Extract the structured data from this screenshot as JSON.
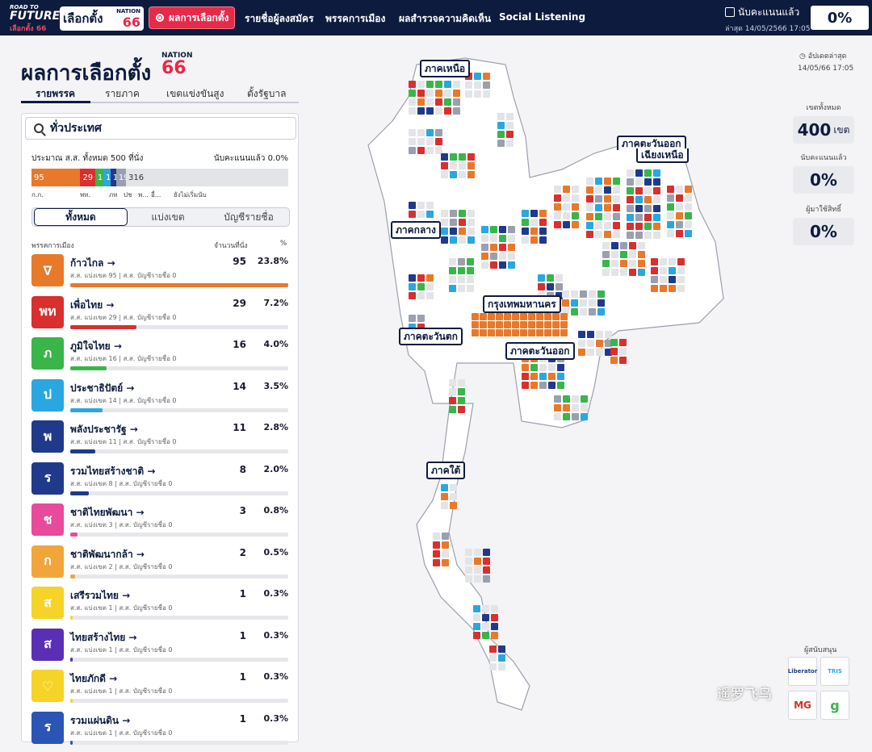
{
  "nav": {
    "logo_top": "ROAD TO",
    "logo_future": "FUTURE",
    "logo_sub": "เลือกตั้ง 66",
    "logo_title": "เลือกตั้ง",
    "logo_nation": "NATION",
    "logo_num": "66",
    "active_item": "ผลการเลือกตั้ง",
    "items": [
      "รายชื่อผู้ลงสมัคร",
      "พรรคการเมือง",
      "ผลสำรวจความคิดเห็น",
      "Social Listening"
    ],
    "count_label": "นับคะแนนแล้ว",
    "count_sub": "ล่าสุด 14/05/2566 17:05",
    "count_pct": "0%"
  },
  "title": {
    "text": "ผลการเลือกตั้ง",
    "nation": "NATION",
    "num": "66"
  },
  "tabs": [
    "รายพรรค",
    "รายภาค",
    "เขตแข่งขันสูง",
    "ตั้งรัฐบาล"
  ],
  "search": {
    "value": "ทั่วประเทศ"
  },
  "summary": {
    "seats_text": "ประมาณ ส.ส. ทั้งหมด 500 ที่นั่ง",
    "counted_text": "นับคะแนนแล้ว 0.0%",
    "bar": [
      {
        "label": "95",
        "value": 95,
        "color": "#e8792b"
      },
      {
        "label": "29",
        "value": 29,
        "color": "#d92f2f"
      },
      {
        "label": "16",
        "value": 16,
        "color": "#39b54a"
      },
      {
        "label": "14",
        "value": 14,
        "color": "#2aa7e0"
      },
      {
        "label": "11",
        "value": 11,
        "color": "#1f3a8a"
      },
      {
        "label": "19",
        "value": 19,
        "color": "#9aa0ad"
      },
      {
        "label": "316",
        "value": 316,
        "color": "#e3e4e8"
      }
    ],
    "legend": [
      "ก.ก.",
      "พท.",
      "ภท",
      "ปช",
      "พ...",
      "อื่...",
      "ยังไม่เริ่มนับ"
    ]
  },
  "filter": {
    "items": [
      "ทั้งหมด",
      "แบ่งเขต",
      "บัญชีรายชื่อ"
    ],
    "active": 0
  },
  "table": {
    "col_party": "พรรคการเมือง",
    "col_seats": "จำนวนที่นั่ง",
    "col_pct": "%"
  },
  "parties": [
    {
      "name": "ก้าวไกล",
      "sub": "ส.ส. แบ่งเขต 95 | ส.ส. บัญชีรายชื่อ 0",
      "seats": "95",
      "pct": "23.8%",
      "fill": 1.0,
      "color": "#e8792b",
      "logo": "∇"
    },
    {
      "name": "เพื่อไทย",
      "sub": "ส.ส. แบ่งเขต 29 | ส.ส. บัญชีรายชื่อ 0",
      "seats": "29",
      "pct": "7.2%",
      "fill": 0.305,
      "color": "#d92f2f",
      "logo": "พท"
    },
    {
      "name": "ภูมิใจไทย",
      "sub": "ส.ส. แบ่งเขต 16 | ส.ส. บัญชีรายชื่อ 0",
      "seats": "16",
      "pct": "4.0%",
      "fill": 0.168,
      "color": "#39b54a",
      "logo": "ภ"
    },
    {
      "name": "ประชาธิปัตย์",
      "sub": "ส.ส. แบ่งเขต 14 | ส.ส. บัญชีรายชื่อ 0",
      "seats": "14",
      "pct": "3.5%",
      "fill": 0.147,
      "color": "#2aa7e0",
      "logo": "ป"
    },
    {
      "name": "พลังประชารัฐ",
      "sub": "ส.ส. แบ่งเขต 11 | ส.ส. บัญชีรายชื่อ 0",
      "seats": "11",
      "pct": "2.8%",
      "fill": 0.116,
      "color": "#1f3a8a",
      "logo": "พ"
    },
    {
      "name": "รวมไทยสร้างชาติ",
      "sub": "ส.ส. แบ่งเขต 8 | ส.ส. บัญชีรายชื่อ 0",
      "seats": "8",
      "pct": "2.0%",
      "fill": 0.084,
      "color": "#1f3a8a",
      "logo": "ร"
    },
    {
      "name": "ชาติไทยพัฒนา",
      "sub": "ส.ส. แบ่งเขต 3 | ส.ส. บัญชีรายชื่อ 0",
      "seats": "3",
      "pct": "0.8%",
      "fill": 0.032,
      "color": "#e84a9c",
      "logo": "ช"
    },
    {
      "name": "ชาติพัฒนากล้า",
      "sub": "ส.ส. แบ่งเขต 2 | ส.ส. บัญชีรายชื่อ 0",
      "seats": "2",
      "pct": "0.5%",
      "fill": 0.021,
      "color": "#f2a53a",
      "logo": "ก"
    },
    {
      "name": "เสรีรวมไทย",
      "sub": "ส.ส. แบ่งเขต 1 | ส.ส. บัญชีรายชื่อ 0",
      "seats": "1",
      "pct": "0.3%",
      "fill": 0.011,
      "color": "#f5d327",
      "logo": "ส"
    },
    {
      "name": "ไทยสร้างไทย",
      "sub": "ส.ส. แบ่งเขต 1 | ส.ส. บัญชีรายชื่อ 0",
      "seats": "1",
      "pct": "0.3%",
      "fill": 0.011,
      "color": "#5b2fb5",
      "logo": "ส"
    },
    {
      "name": "ไทยภักดี",
      "sub": "ส.ส. แบ่งเขต 1 | ส.ส. บัญชีรายชื่อ 0",
      "seats": "1",
      "pct": "0.3%",
      "fill": 0.011,
      "color": "#f5d327",
      "logo": "♡"
    },
    {
      "name": "รวมแผ่นดิน",
      "sub": "ส.ส. แบ่งเขต 1 | ส.ส. บัญชีรายชื่อ 0",
      "seats": "1",
      "pct": "0.3%",
      "fill": 0.011,
      "color": "#2a55b5",
      "logo": "ร"
    }
  ],
  "map": {
    "regions": [
      "ภาคเหนือ",
      "ภาคตะวันออก",
      "เฉียงเหนือ",
      "ภาคกลาง",
      "กรุงเทพมหานคร",
      "ภาคตะวันตก",
      "ภาคตะวันออก",
      "ภาคใต้"
    ]
  },
  "right": {
    "update_label": "อัปเดตล่าสุด",
    "update_date": "14/05/66 17:05",
    "stats": [
      {
        "label": "เขตทั้งหมด",
        "value": "400",
        "unit": "เขต"
      },
      {
        "label": "นับคะแนนแล้ว",
        "value": "0%",
        "unit": ""
      },
      {
        "label": "ผู้มาใช้สิทธิ์",
        "value": "0%",
        "unit": ""
      }
    ],
    "sponsor_title": "ผู้สนับสนุน",
    "sponsors": [
      "Liberator",
      "TRIS",
      "MG",
      "g"
    ]
  },
  "watermark": "遥罗飞鸟"
}
